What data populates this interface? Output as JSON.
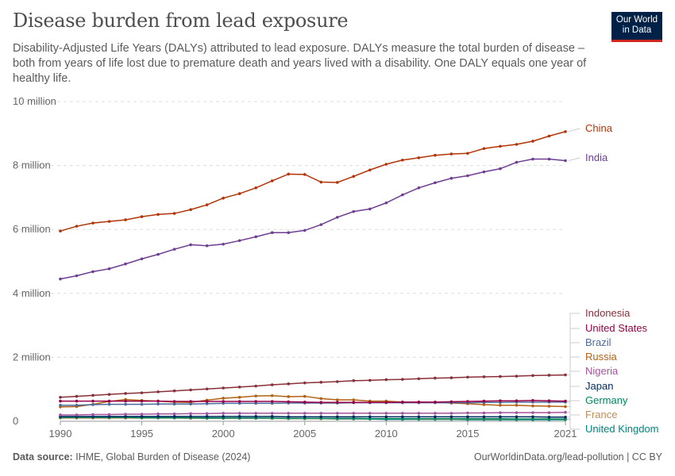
{
  "title": "Disease burden from lead exposure",
  "subtitle": "Disability-Adjusted Life Years (DALYs) attributed to lead exposure. DALYs measure the total burden of disease – both from years of life lost due to premature death and years lived with a disability. One DALY equals one year of healthy life.",
  "logo": "Our World in Data",
  "footer": {
    "source_label": "Data source:",
    "source": "IHME, Global Burden of Disease (2024)",
    "url": "OurWorldinData.org/lead-pollution | CC BY"
  },
  "chart_data": {
    "type": "line",
    "title": "Disease burden from lead exposure",
    "ylim": [
      0,
      10000000
    ],
    "xlim": [
      1990,
      2021
    ],
    "yticks": [
      {
        "v": 0,
        "label": "0"
      },
      {
        "v": 2000000,
        "label": "2 million"
      },
      {
        "v": 4000000,
        "label": "4 million"
      },
      {
        "v": 6000000,
        "label": "6 million"
      },
      {
        "v": 8000000,
        "label": "8 million"
      },
      {
        "v": 10000000,
        "label": "10 million"
      }
    ],
    "xticks": [
      {
        "v": 1990,
        "label": "1990"
      },
      {
        "v": 1995,
        "label": "1995"
      },
      {
        "v": 2000,
        "label": "2000"
      },
      {
        "v": 2005,
        "label": "2005"
      },
      {
        "v": 2010,
        "label": "2010"
      },
      {
        "v": 2015,
        "label": "2015"
      },
      {
        "v": 2021,
        "label": "2021"
      }
    ],
    "grid": "horizontal dashed",
    "legend": "right, labels at line ends",
    "x": [
      1990,
      1991,
      1992,
      1993,
      1994,
      1995,
      1996,
      1997,
      1998,
      1999,
      2000,
      2001,
      2002,
      2003,
      2004,
      2005,
      2006,
      2007,
      2008,
      2009,
      2010,
      2011,
      2012,
      2013,
      2014,
      2015,
      2016,
      2017,
      2018,
      2019,
      2020,
      2021
    ],
    "series": [
      {
        "name": "China",
        "color": "#B13507",
        "values": [
          5.95,
          6.1,
          6.2,
          6.25,
          6.3,
          6.4,
          6.47,
          6.5,
          6.62,
          6.77,
          6.98,
          7.12,
          7.3,
          7.52,
          7.73,
          7.72,
          7.48,
          7.47,
          7.66,
          7.86,
          8.04,
          8.17,
          8.24,
          8.32,
          8.36,
          8.38,
          8.53,
          8.6,
          8.66,
          8.76,
          8.92,
          9.06
        ]
      },
      {
        "name": "India",
        "color": "#6D3E91",
        "values": [
          4.45,
          4.55,
          4.68,
          4.77,
          4.92,
          5.08,
          5.22,
          5.38,
          5.52,
          5.49,
          5.54,
          5.65,
          5.77,
          5.9,
          5.9,
          5.97,
          6.15,
          6.38,
          6.56,
          6.64,
          6.83,
          7.08,
          7.3,
          7.46,
          7.6,
          7.68,
          7.8,
          7.9,
          8.1,
          8.2,
          8.2,
          8.15
        ]
      },
      {
        "name": "Indonesia",
        "color": "#883039",
        "values": [
          0.75,
          0.78,
          0.81,
          0.84,
          0.87,
          0.89,
          0.92,
          0.95,
          0.98,
          1.01,
          1.04,
          1.07,
          1.1,
          1.14,
          1.17,
          1.2,
          1.22,
          1.24,
          1.27,
          1.28,
          1.3,
          1.31,
          1.33,
          1.35,
          1.36,
          1.38,
          1.39,
          1.4,
          1.41,
          1.43,
          1.44,
          1.45
        ]
      },
      {
        "name": "United States",
        "color": "#970046",
        "values": [
          0.63,
          0.63,
          0.63,
          0.63,
          0.63,
          0.63,
          0.63,
          0.62,
          0.62,
          0.62,
          0.62,
          0.62,
          0.62,
          0.62,
          0.61,
          0.6,
          0.59,
          0.59,
          0.59,
          0.59,
          0.59,
          0.6,
          0.6,
          0.6,
          0.61,
          0.62,
          0.63,
          0.64,
          0.64,
          0.65,
          0.64,
          0.63
        ]
      },
      {
        "name": "Brazil",
        "color": "#4C6A9C",
        "values": [
          0.5,
          0.5,
          0.52,
          0.53,
          0.53,
          0.53,
          0.54,
          0.54,
          0.54,
          0.55,
          0.56,
          0.56,
          0.56,
          0.56,
          0.57,
          0.57,
          0.57,
          0.57,
          0.58,
          0.58,
          0.58,
          0.58,
          0.58,
          0.58,
          0.58,
          0.58,
          0.59,
          0.59,
          0.6,
          0.6,
          0.6,
          0.6
        ]
      },
      {
        "name": "Russia",
        "color": "#B16214",
        "values": [
          0.45,
          0.46,
          0.53,
          0.62,
          0.68,
          0.65,
          0.63,
          0.6,
          0.59,
          0.66,
          0.72,
          0.75,
          0.79,
          0.8,
          0.77,
          0.78,
          0.71,
          0.67,
          0.67,
          0.63,
          0.63,
          0.6,
          0.6,
          0.59,
          0.57,
          0.55,
          0.52,
          0.5,
          0.5,
          0.48,
          0.47,
          0.46
        ]
      },
      {
        "name": "Nigeria",
        "color": "#A2559C",
        "values": [
          0.2,
          0.2,
          0.21,
          0.21,
          0.22,
          0.22,
          0.23,
          0.23,
          0.24,
          0.24,
          0.25,
          0.25,
          0.25,
          0.25,
          0.25,
          0.25,
          0.25,
          0.25,
          0.25,
          0.25,
          0.25,
          0.25,
          0.25,
          0.25,
          0.25,
          0.26,
          0.26,
          0.27,
          0.27,
          0.27,
          0.27,
          0.28
        ]
      },
      {
        "name": "Japan",
        "color": "#00295B",
        "values": [
          0.15,
          0.15,
          0.15,
          0.15,
          0.15,
          0.15,
          0.15,
          0.15,
          0.15,
          0.15,
          0.15,
          0.15,
          0.15,
          0.15,
          0.14,
          0.14,
          0.14,
          0.14,
          0.14,
          0.14,
          0.14,
          0.14,
          0.14,
          0.14,
          0.14,
          0.14,
          0.14,
          0.14,
          0.14,
          0.14,
          0.13,
          0.13
        ]
      },
      {
        "name": "Germany",
        "color": "#00875E",
        "values": [
          0.12,
          0.12,
          0.12,
          0.12,
          0.12,
          0.11,
          0.11,
          0.11,
          0.11,
          0.1,
          0.1,
          0.1,
          0.1,
          0.1,
          0.09,
          0.09,
          0.09,
          0.09,
          0.09,
          0.08,
          0.08,
          0.08,
          0.08,
          0.08,
          0.08,
          0.08,
          0.08,
          0.08,
          0.07,
          0.07,
          0.07,
          0.07
        ]
      },
      {
        "name": "France",
        "color": "#BC8E5A",
        "values": [
          0.1,
          0.1,
          0.1,
          0.1,
          0.1,
          0.1,
          0.1,
          0.1,
          0.09,
          0.09,
          0.09,
          0.09,
          0.09,
          0.09,
          0.08,
          0.08,
          0.08,
          0.08,
          0.08,
          0.08,
          0.08,
          0.08,
          0.07,
          0.07,
          0.07,
          0.07,
          0.07,
          0.07,
          0.07,
          0.07,
          0.07,
          0.07
        ]
      },
      {
        "name": "United Kingdom",
        "color": "#00847E",
        "values": [
          0.13,
          0.13,
          0.13,
          0.13,
          0.13,
          0.12,
          0.12,
          0.12,
          0.11,
          0.11,
          0.1,
          0.1,
          0.1,
          0.09,
          0.09,
          0.08,
          0.08,
          0.07,
          0.07,
          0.07,
          0.06,
          0.06,
          0.06,
          0.06,
          0.06,
          0.05,
          0.05,
          0.05,
          0.05,
          0.05,
          0.05,
          0.05
        ]
      }
    ],
    "value_unit": "million DALYs"
  }
}
